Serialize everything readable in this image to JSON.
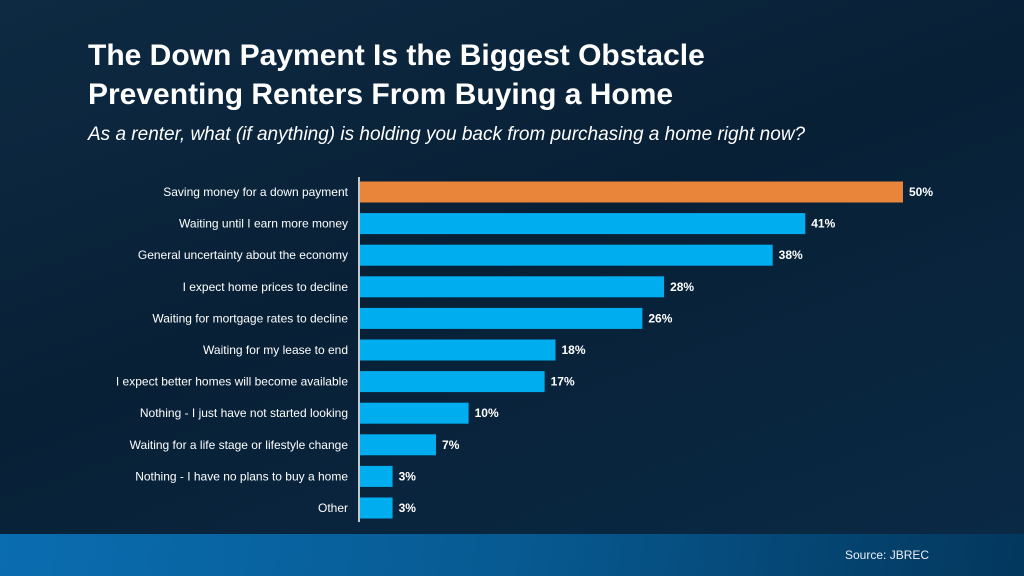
{
  "header": {
    "title_line1": "The Down Payment Is the Biggest Obstacle",
    "title_line2": "Preventing Renters From Buying a Home",
    "subtitle": "As a renter, what (if anything) is holding you back from purchasing a home right now?"
  },
  "footer": {
    "source": "Source: JBREC"
  },
  "colors": {
    "highlight": "#e8853a",
    "bar": "#00aeef",
    "background": "#082036"
  },
  "chart_data": {
    "type": "bar",
    "orientation": "horizontal",
    "categories": [
      "Saving money for a down payment",
      "Waiting until I earn more money",
      "General uncertainty about the economy",
      "I expect home prices to decline",
      "Waiting for mortgage rates to decline",
      "Waiting for my lease to end",
      "I expect better homes will become available",
      "Nothing - I just have not started looking",
      "Waiting for a life stage or lifestyle change",
      "Nothing - I have no plans to buy a home",
      "Other"
    ],
    "values": [
      50,
      41,
      38,
      28,
      26,
      18,
      17,
      10,
      7,
      3,
      3
    ],
    "data_labels": [
      "50%",
      "41%",
      "38%",
      "28%",
      "26%",
      "18%",
      "17%",
      "10%",
      "7%",
      "3%",
      "3%"
    ],
    "highlighted_index": 0,
    "xlim": [
      0,
      50
    ],
    "grid": false
  }
}
